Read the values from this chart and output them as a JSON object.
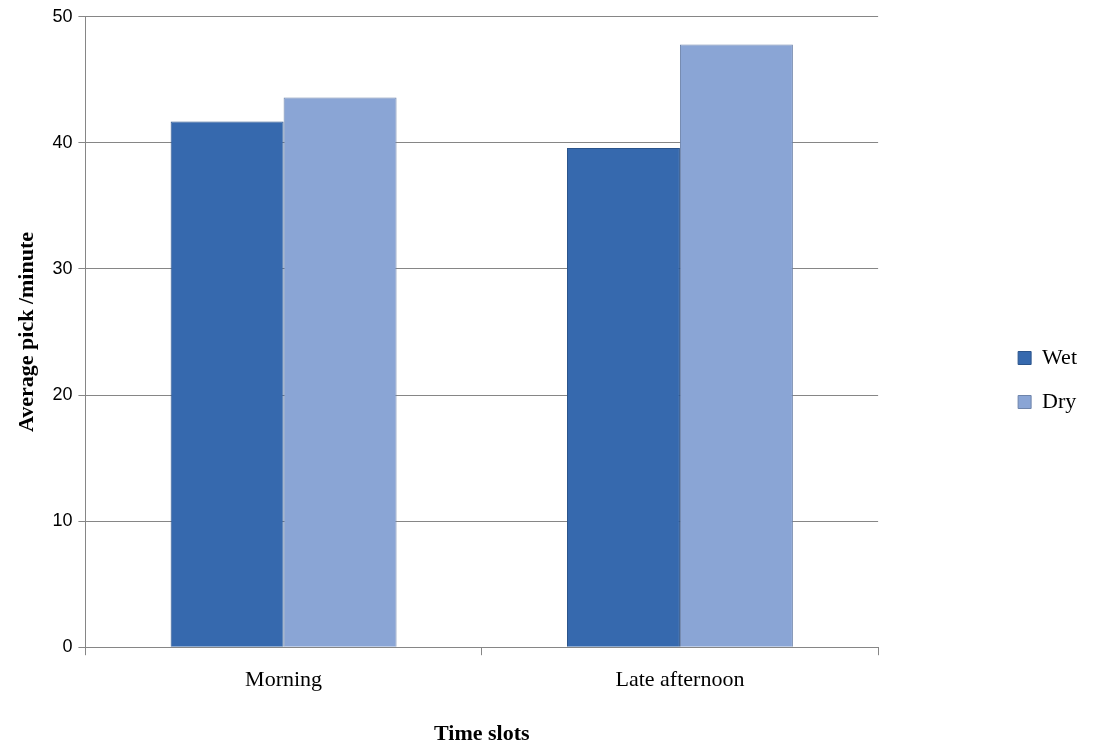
{
  "chart_data": {
    "type": "bar",
    "xlabel": "Time slots",
    "ylabel": "Average pick /minute",
    "categories": [
      "Morning",
      "Late afternoon"
    ],
    "series": [
      {
        "name": "Wet",
        "color": "#3669ae",
        "values": [
          41.7,
          39.6
        ]
      },
      {
        "name": "Dry",
        "color": "#8aa5d5",
        "values": [
          43.6,
          47.8
        ]
      }
    ],
    "ylim": [
      0,
      50
    ],
    "yticks": [
      0,
      10,
      20,
      30,
      40,
      50
    ],
    "grid": "y",
    "legend": "right"
  }
}
